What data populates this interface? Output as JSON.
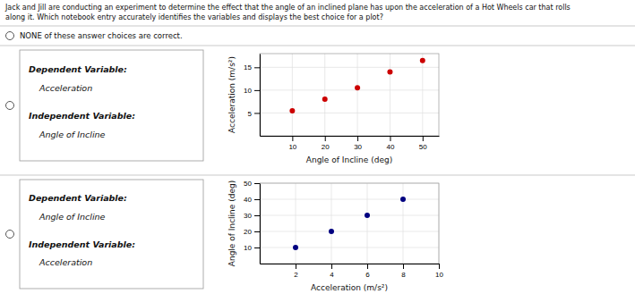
{
  "title": "Jack and Jill are conducting an experiment to determine the effect that the angle of an inclined plane has upon the acceleration of a Hot Wheels car that rolls",
  "subtitle": "along it.  Which notebook entry accurately identifies the variables and displays the best choice for a plot?",
  "annotations": [
    "NONE of these answer choices are correct."
  ],
  "chart_data": [
    {
      "type": "scatter",
      "xlabel": "Angle of Incline (deg)",
      "ylabel": "Acceleration (m/s²)",
      "x": [
        10,
        20,
        30,
        40,
        50
      ],
      "values": [
        5.5,
        8.0,
        10.5,
        14.0,
        16.5
      ],
      "xlim": [
        0,
        55
      ],
      "ylim": [
        0,
        18
      ],
      "xticks": [
        10,
        20,
        30,
        40,
        50
      ],
      "yticks": [
        5,
        10,
        15
      ],
      "color": "#cc0000",
      "grid": true,
      "annotations": [
        "Dependent Variable:",
        "Acceleration",
        "Independent Variable:",
        "Angle of Incline"
      ]
    },
    {
      "type": "scatter",
      "xlabel": "Acceleration (m/s²)",
      "ylabel": "Angle of Incline (deg)",
      "x": [
        2.0,
        4.0,
        6.0,
        8.0
      ],
      "values": [
        10,
        20,
        30,
        40
      ],
      "xlim": [
        0,
        10
      ],
      "ylim": [
        0,
        50
      ],
      "xticks": [
        2,
        4,
        6,
        8,
        10
      ],
      "yticks": [
        10,
        20,
        30,
        40,
        50
      ],
      "color": "#000080",
      "grid": true,
      "annotations": [
        "Dependent Variable:",
        "Angle of Incline",
        "Independent Variable:",
        "Acceleration"
      ]
    }
  ]
}
